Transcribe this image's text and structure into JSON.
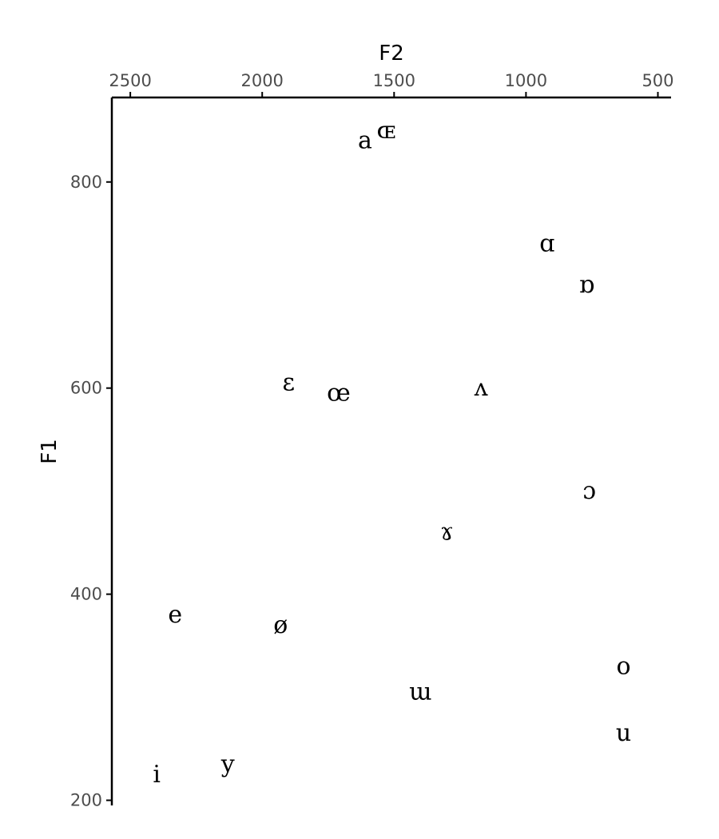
{
  "chart_data": {
    "type": "scatter",
    "xlabel": "F2",
    "ylabel": "F1",
    "x_axis_position": "top",
    "x_reversed": true,
    "y_reversed": true,
    "grid": false,
    "legend": "none",
    "xlim": [
      2570,
      450
    ],
    "ylim": [
      882,
      195
    ],
    "x_ticks": [
      2500,
      2000,
      1500,
      1000,
      500
    ],
    "y_ticks": [
      800,
      600,
      400,
      200
    ],
    "points": [
      {
        "label": "i",
        "F2": 2400,
        "F1": 225
      },
      {
        "label": "y",
        "F2": 2130,
        "F1": 235
      },
      {
        "label": "e",
        "F2": 2330,
        "F1": 380
      },
      {
        "label": "ø",
        "F2": 1930,
        "F1": 370
      },
      {
        "label": "ɛ",
        "F2": 1900,
        "F1": 605
      },
      {
        "label": "œ",
        "F2": 1710,
        "F1": 595
      },
      {
        "label": "a",
        "F2": 1610,
        "F1": 840
      },
      {
        "label": "ɶ",
        "F2": 1530,
        "F1": 850
      },
      {
        "label": "ɯ",
        "F2": 1400,
        "F1": 305
      },
      {
        "label": "ɤ",
        "F2": 1300,
        "F1": 460
      },
      {
        "label": "ʌ",
        "F2": 1170,
        "F1": 600
      },
      {
        "label": "ɑ",
        "F2": 920,
        "F1": 740
      },
      {
        "label": "ɒ",
        "F2": 770,
        "F1": 700
      },
      {
        "label": "ɔ",
        "F2": 760,
        "F1": 500
      },
      {
        "label": "o",
        "F2": 630,
        "F1": 330
      },
      {
        "label": "u",
        "F2": 630,
        "F1": 265
      }
    ]
  }
}
